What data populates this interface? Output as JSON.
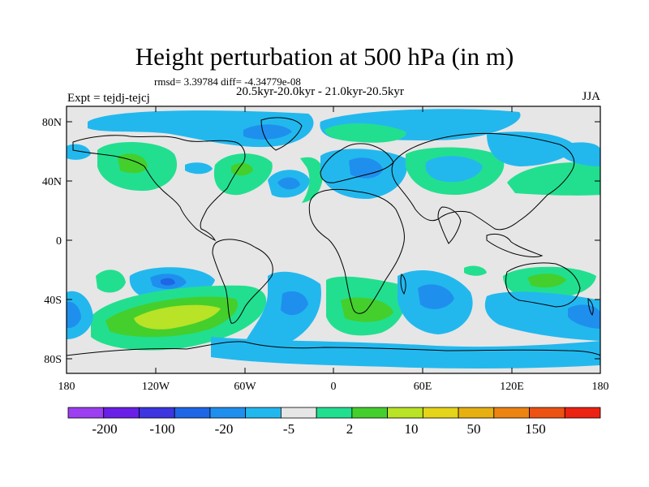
{
  "title": "Height perturbation at 500 hPa (in m)",
  "stats_line": "rmsd= 3.39784 diff= -4.34779e-08",
  "period_line": "20.5kyr-20.0kyr - 21.0kyr-20.5kyr",
  "experiment_line": "Expt = tejdj-tejcj",
  "season": "JJA",
  "lat_labels": [
    "80N",
    "40N",
    "0",
    "40S",
    "80S"
  ],
  "lon_labels": [
    "180",
    "120W",
    "60W",
    "0",
    "60E",
    "120E",
    "180"
  ],
  "colorbar": {
    "labels": [
      "-200",
      "-100",
      "-20",
      "-5",
      "2",
      "10",
      "50",
      "150"
    ],
    "colors": [
      "#9b3ff0",
      "#6a1fe6",
      "#3c35e0",
      "#1f66e6",
      "#1f8fee",
      "#22b8ee",
      "#e6e6e6",
      "#22df8f",
      "#44cf2c",
      "#b8e326",
      "#e4d41a",
      "#e6b012",
      "#ec8412",
      "#ec5212",
      "#ec2212"
    ]
  },
  "colors": {
    "neutral": "#e6e6e6",
    "blue_dark": "#1f66e6",
    "blue": "#1f8fee",
    "cyan": "#22b8ee",
    "green_light": "#22df8f",
    "green": "#44cf2c",
    "yellow_green": "#b8e326"
  }
}
